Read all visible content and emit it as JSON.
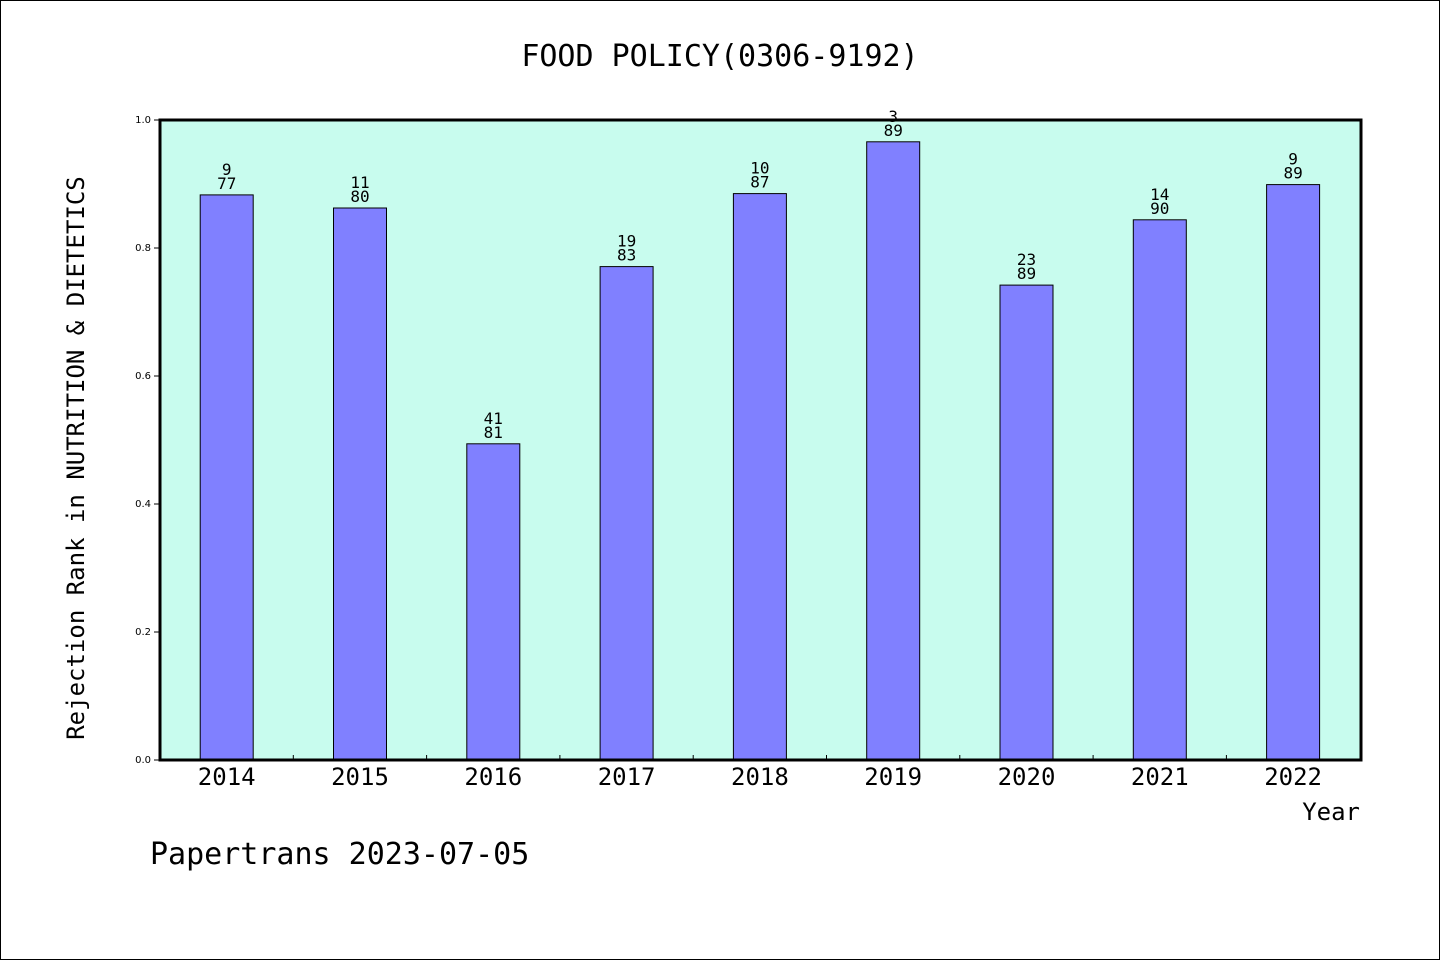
{
  "chart_data": {
    "type": "bar",
    "title": "FOOD POLICY(0306-9192)",
    "xlabel": "Year",
    "ylabel": "Rejection Rank in NUTRITION & DIETETICS",
    "ylim": [
      0,
      1.0
    ],
    "yticks": [
      "0.0",
      "0.2",
      "0.4",
      "0.6",
      "0.8",
      "1.0"
    ],
    "categories": [
      "2014",
      "2015",
      "2016",
      "2017",
      "2018",
      "2019",
      "2020",
      "2021",
      "2022"
    ],
    "values": [
      0.883,
      0.8625,
      0.494,
      0.771,
      0.885,
      0.966,
      0.742,
      0.844,
      0.899
    ],
    "labels_top": [
      "9",
      "11",
      "41",
      "19",
      "10",
      "3",
      "23",
      "14",
      "9"
    ],
    "labels_bottom": [
      "77",
      "80",
      "81",
      "83",
      "87",
      "89",
      "89",
      "90",
      "89"
    ],
    "bar_color": "#8080ff",
    "plot_background": "#c8fcee",
    "grid": false
  },
  "footer": "Papertrans 2023-07-05"
}
